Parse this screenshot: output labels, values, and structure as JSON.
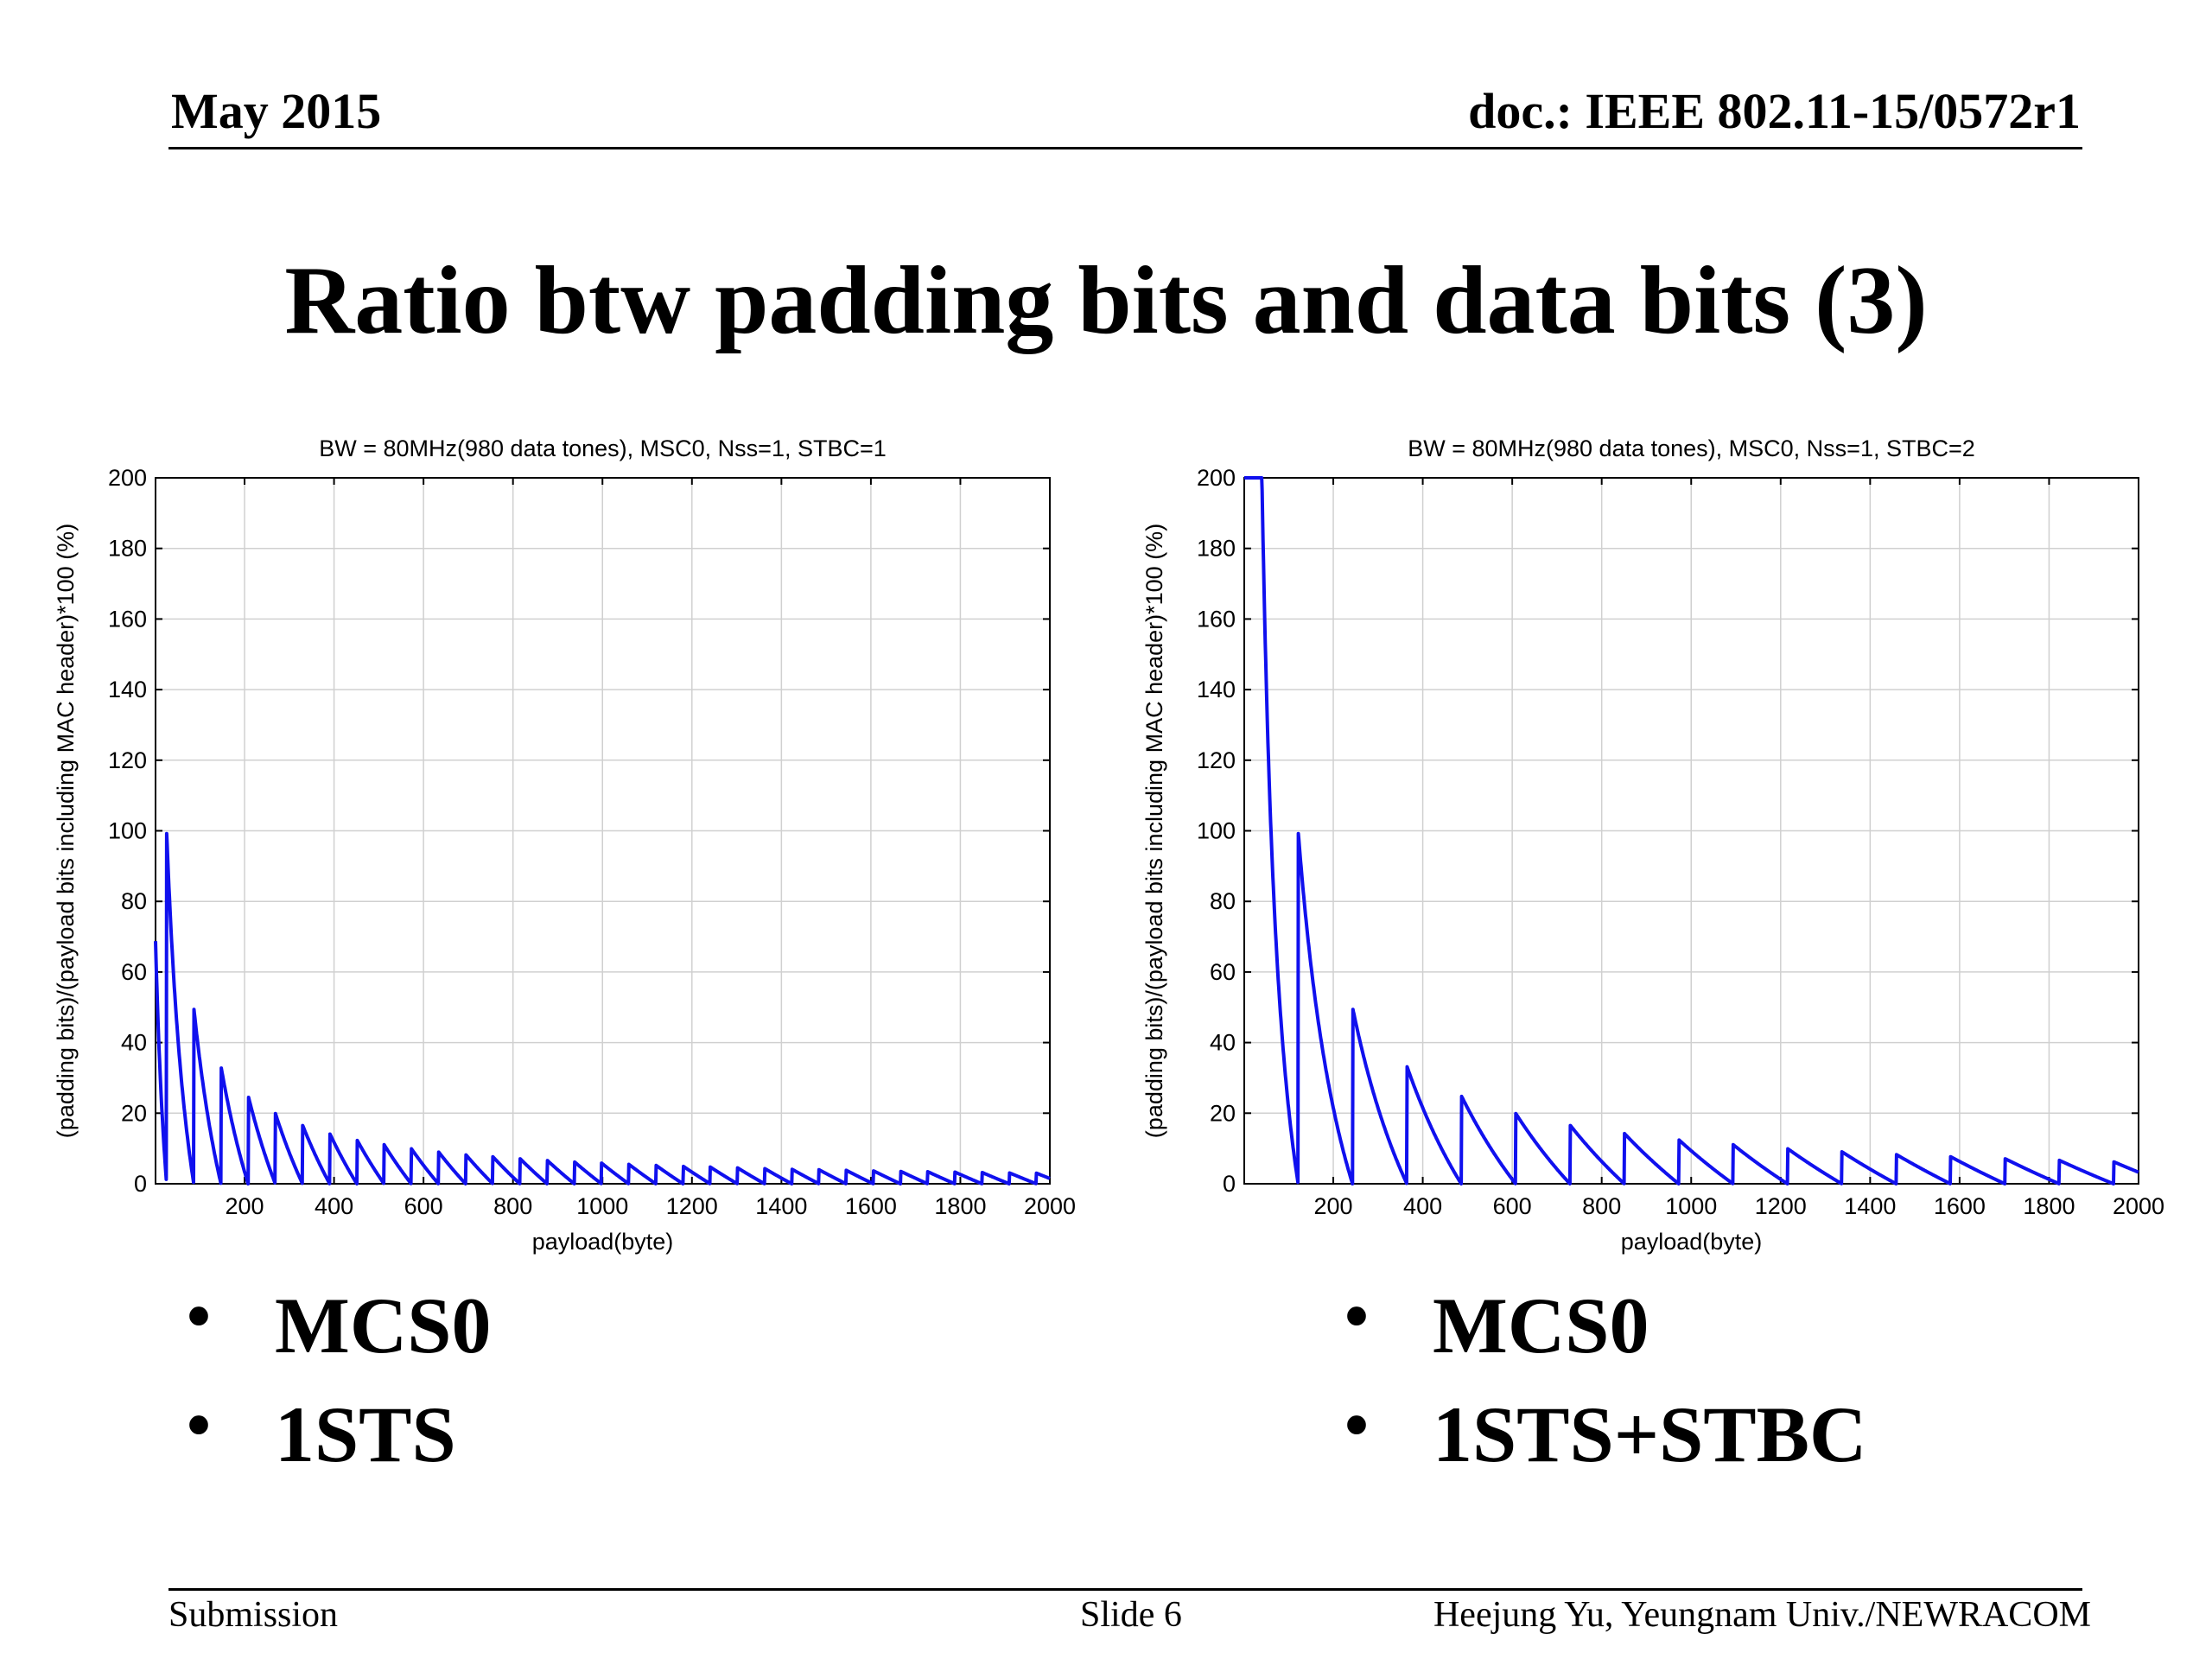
{
  "header": {
    "date": "May 2015",
    "doc": "doc.: IEEE 802.11-15/0572r1"
  },
  "title": "Ratio btw padding bits and data bits (3)",
  "chart_data": [
    {
      "type": "line",
      "title": "BW = 80MHz(980 data tones), MSC0, Nss=1, STBC=1",
      "xlabel": "payload(byte)",
      "ylabel": "(padding bits)/(payload bits including MAC header)*100 (%)",
      "xlim": [
        1,
        2000
      ],
      "ylim": [
        0,
        200
      ],
      "xticks": [
        200,
        400,
        600,
        800,
        1000,
        1200,
        1400,
        1600,
        1800,
        2000
      ],
      "yticks": [
        0,
        20,
        40,
        60,
        80,
        100,
        120,
        140,
        160,
        180,
        200
      ],
      "grid": true,
      "line_color": "#1010ee",
      "series": [
        {
          "symbol_payload_bytes": 60.75,
          "mac_header_bytes": 35
        }
      ]
    },
    {
      "type": "line",
      "title": "BW = 80MHz(980 data tones), MSC0, Nss=1, STBC=2",
      "xlabel": "payload(byte)",
      "ylabel": "(padding bits)/(payload bits including MAC header)*100 (%)",
      "xlim": [
        1,
        2000
      ],
      "ylim": [
        0,
        200
      ],
      "xticks": [
        200,
        400,
        600,
        800,
        1000,
        1200,
        1400,
        1600,
        1800,
        2000
      ],
      "yticks": [
        0,
        20,
        40,
        60,
        80,
        100,
        120,
        140,
        160,
        180,
        200
      ],
      "grid": true,
      "line_color": "#1010ee",
      "series": [
        {
          "symbol_payload_bytes": 121.5,
          "mac_header_bytes": 0
        }
      ]
    }
  ],
  "bullets_left": [
    "MCS0",
    "1STS"
  ],
  "bullets_right": [
    "MCS0",
    "1STS+STBC"
  ],
  "footer": {
    "left": "Submission",
    "center": "Slide 6",
    "right": "Heejung Yu, Yeungnam Univ./NEWRACOM"
  }
}
